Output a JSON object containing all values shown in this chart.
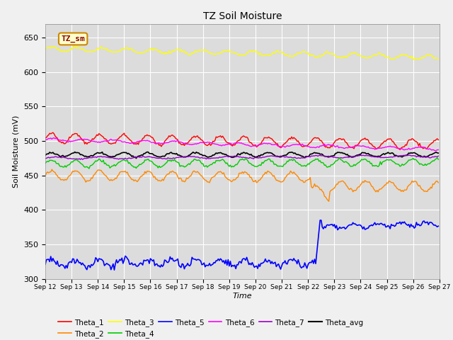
{
  "title": "TZ Soil Moisture",
  "xlabel": "Time",
  "ylabel": "Soil Moisture (mV)",
  "ylim": [
    300,
    670
  ],
  "yticks": [
    300,
    350,
    400,
    450,
    500,
    550,
    600,
    650
  ],
  "n_points": 360,
  "xtick_labels": [
    "Sep 12",
    "Sep 13",
    "Sep 14",
    "Sep 15",
    "Sep 16",
    "Sep 17",
    "Sep 18",
    "Sep 19",
    "Sep 20",
    "Sep 21",
    "Sep 22",
    "Sep 23",
    "Sep 24",
    "Sep 25",
    "Sep 26",
    "Sep 27"
  ],
  "colors": {
    "Theta_1": "#ff0000",
    "Theta_2": "#ff8800",
    "Theta_3": "#ffff00",
    "Theta_4": "#00cc00",
    "Theta_5": "#0000ff",
    "Theta_6": "#ff00ff",
    "Theta_7": "#9900cc",
    "Theta_avg": "#000000"
  },
  "legend_label": "TZ_sm",
  "legend_box_color": "#ffffcc",
  "legend_box_edge": "#cc8800",
  "legend_text_color": "#880000",
  "plot_bg": "#dcdcdc",
  "fig_bg": "#f0f0f0",
  "grid_color": "#ffffff"
}
